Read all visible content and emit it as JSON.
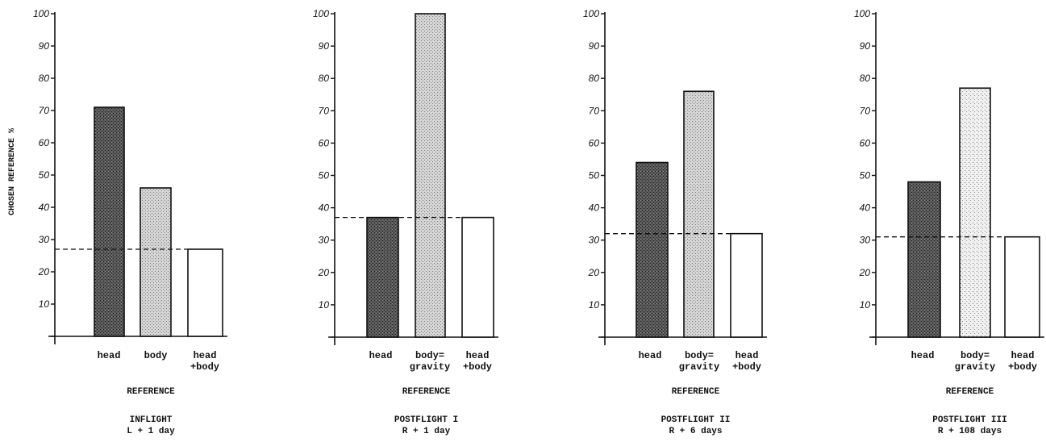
{
  "figure": {
    "ylabel": "CHOSEN REFERENCE %",
    "colors": {
      "head": "#3c3c3c",
      "body": "#b8b8b8",
      "head_body": "#ffffff",
      "axis": "#111111"
    }
  },
  "chart_data": [
    {
      "type": "bar",
      "title": [
        "INFLIGHT",
        "L + 1 day"
      ],
      "xlabel": "REFERENCE",
      "ylabel": "CHOSEN REFERENCE %",
      "ylim": [
        0,
        100
      ],
      "yticks": [
        "",
        "10",
        "20",
        "30",
        "40",
        "50",
        "60",
        "70",
        "80",
        "90",
        "100"
      ],
      "categories": [
        [
          "head"
        ],
        [
          "body"
        ],
        [
          "head",
          "+body"
        ]
      ],
      "values": [
        71,
        46,
        27
      ],
      "reference_line": 27
    },
    {
      "type": "bar",
      "title": [
        "POSTFLIGHT I",
        "R + 1 day"
      ],
      "xlabel": "REFERENCE",
      "ylabel": "",
      "ylim": [
        0,
        100
      ],
      "yticks": [
        "",
        "10",
        "20",
        "30",
        "40",
        "50",
        "60",
        "70",
        "80",
        "90",
        "100"
      ],
      "categories": [
        [
          "head"
        ],
        [
          "body=",
          "gravity"
        ],
        [
          "head",
          "+body"
        ]
      ],
      "values": [
        37,
        100,
        37
      ],
      "reference_line": 37
    },
    {
      "type": "bar",
      "title": [
        "POSTFLIGHT II",
        "R + 6 days"
      ],
      "xlabel": "REFERENCE",
      "ylabel": "",
      "ylim": [
        0,
        100
      ],
      "yticks": [
        "",
        "10",
        "20",
        "30",
        "40",
        "50",
        "60",
        "70",
        "80",
        "90",
        "100"
      ],
      "categories": [
        [
          "head"
        ],
        [
          "body=",
          "gravity"
        ],
        [
          "head",
          "+body"
        ]
      ],
      "values": [
        54,
        76,
        32
      ],
      "reference_line": 32
    },
    {
      "type": "bar",
      "title": [
        "POSTFLIGHT III",
        "R + 108 days"
      ],
      "xlabel": "REFERENCE",
      "ylabel": "",
      "ylim": [
        0,
        100
      ],
      "yticks": [
        "",
        "10",
        "20",
        "30",
        "40",
        "50",
        "60",
        "70",
        "80",
        "90",
        "100"
      ],
      "categories": [
        [
          "head"
        ],
        [
          "body=",
          "gravity"
        ],
        [
          "head",
          "+body"
        ]
      ],
      "values": [
        48,
        77,
        31
      ],
      "reference_line": 31
    }
  ]
}
